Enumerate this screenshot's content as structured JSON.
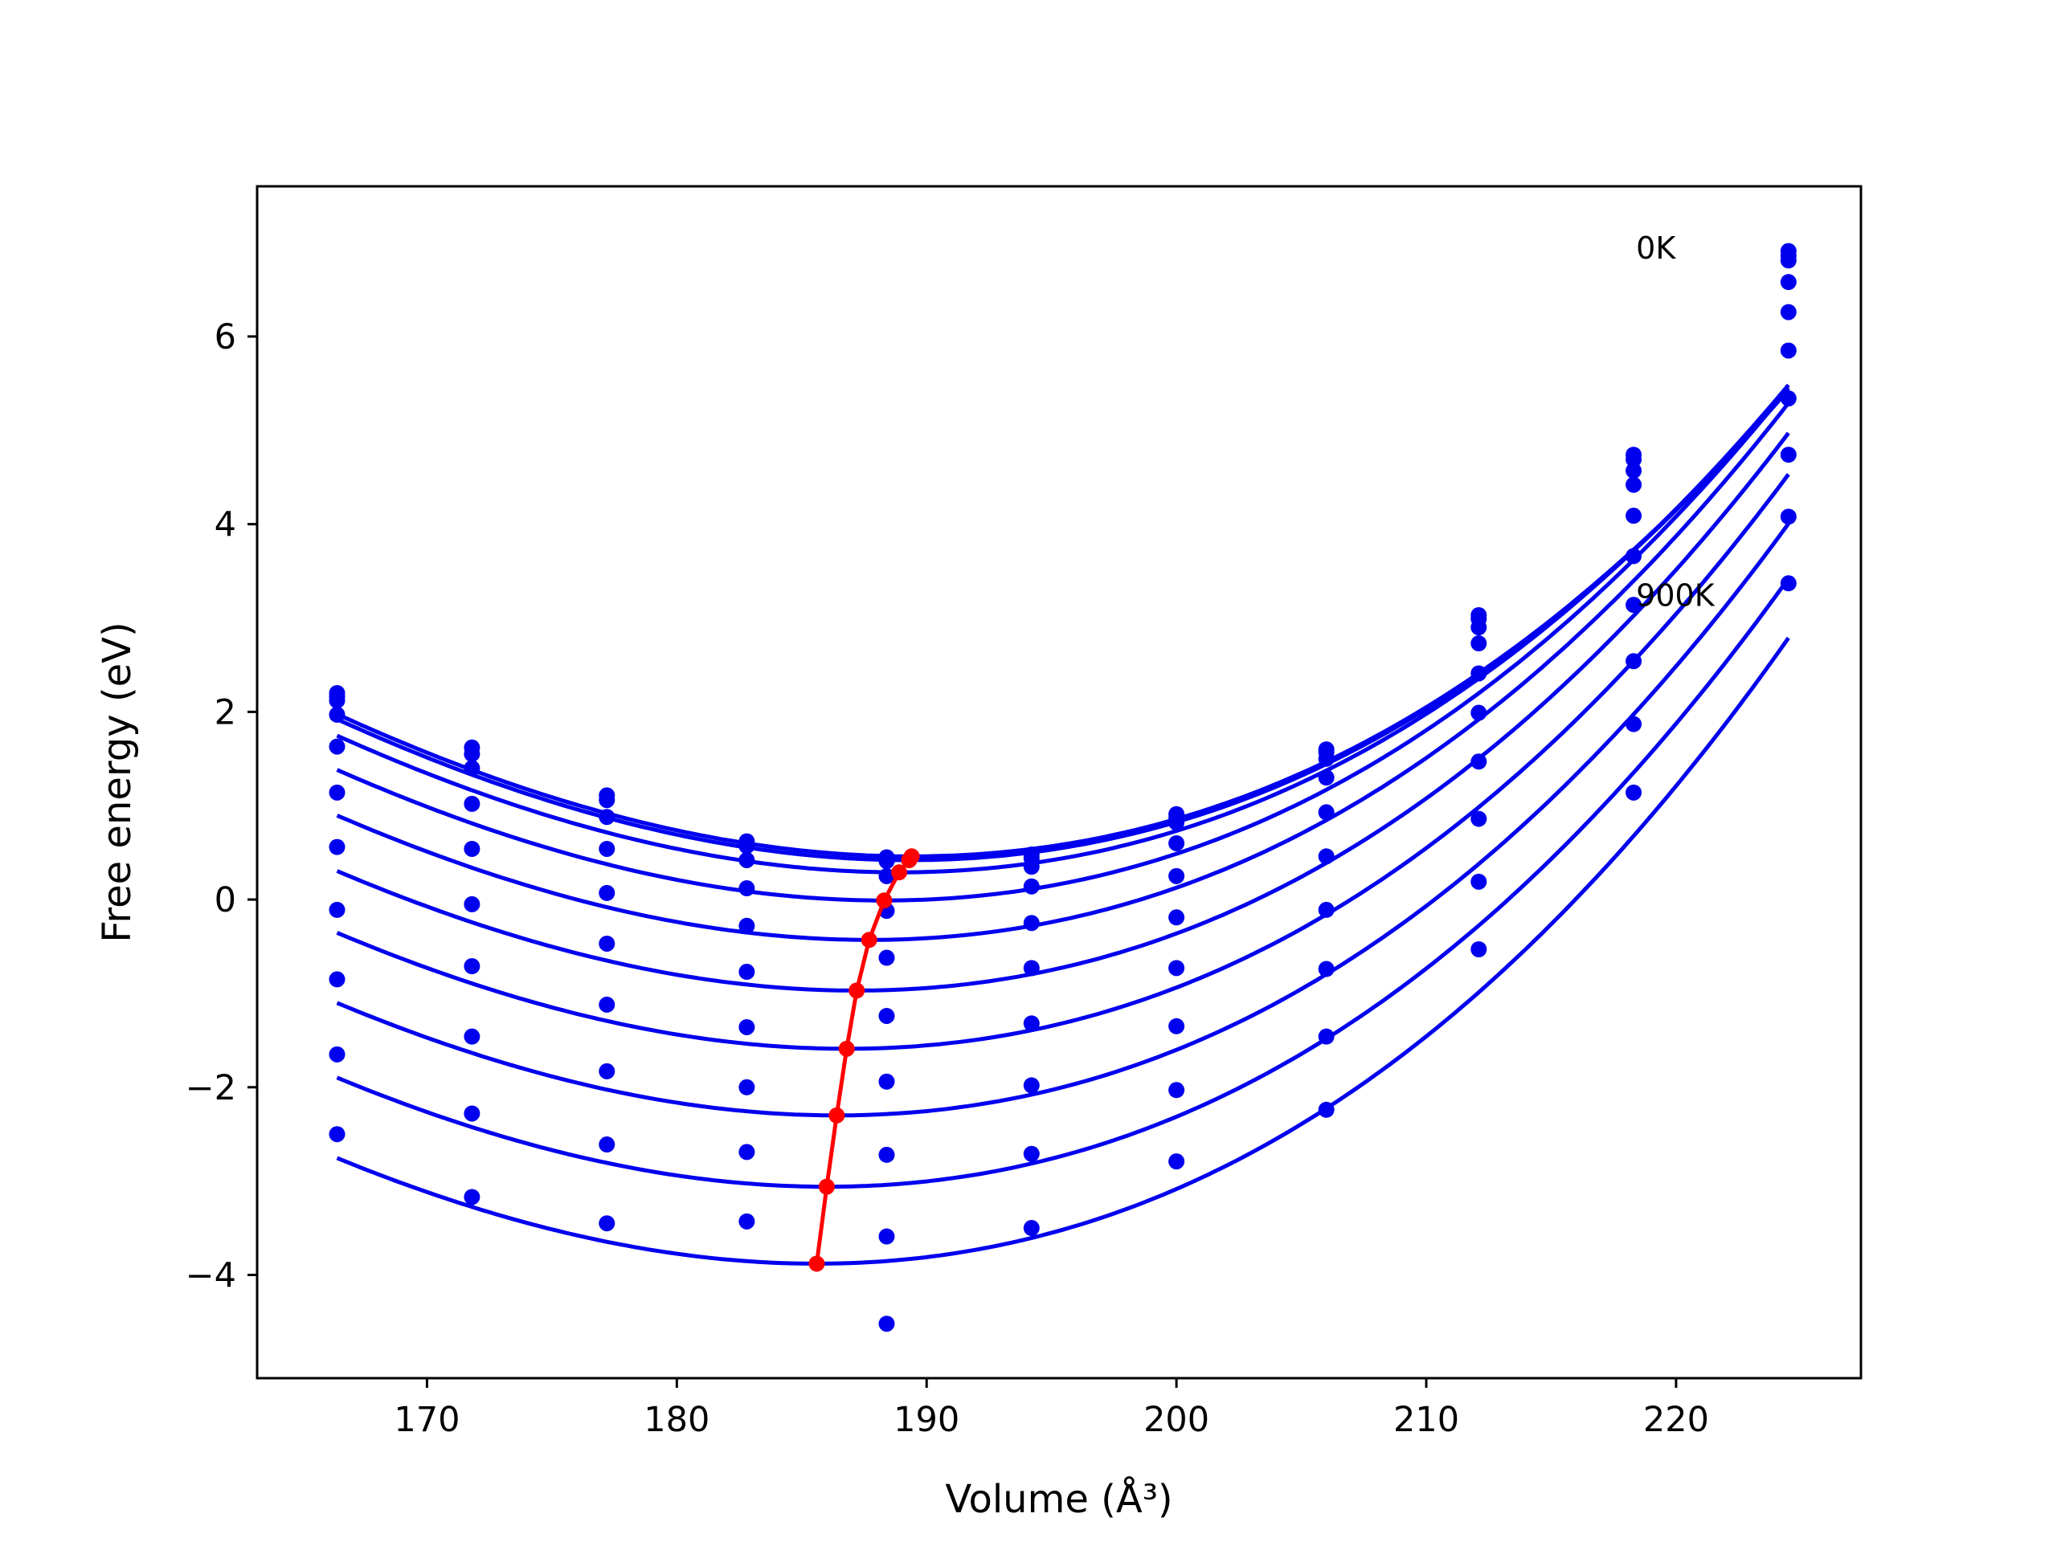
{
  "chart_data": {
    "type": "line",
    "xlabel": "Volume (Å³)",
    "ylabel": "Free energy (eV)",
    "xlim": [
      163.2,
      227.4
    ],
    "ylim": [
      -5.1,
      7.6
    ],
    "xticks": [
      170,
      180,
      190,
      200,
      210,
      220
    ],
    "yticks": [
      -4,
      -2,
      0,
      2,
      4,
      6
    ],
    "grid": false,
    "annotations": [
      {
        "text": "0K",
        "x": 218.4,
        "y": 6.95
      },
      {
        "text": "900K",
        "x": 218.4,
        "y": 3.25
      }
    ],
    "colors": {
      "curves": "#0000ee",
      "minimum": "#ff0000"
    },
    "volumes": [
      166.4,
      171.8,
      177.2,
      182.8,
      188.4,
      194.2,
      200.0,
      206.0,
      212.1,
      218.3,
      224.5
    ],
    "series": [
      {
        "points": [
          2.2,
          1.62,
          1.11,
          0.62,
          0.45,
          0.48,
          0.91,
          1.6,
          3.03,
          4.74,
          6.91
        ],
        "fit": {
          "vmin": 189.4,
          "fmin": 0.46,
          "a": 0.00333,
          "b": 2.02e-05
        }
      },
      {
        "points": [
          2.16,
          1.55,
          1.06,
          0.57,
          0.41,
          0.44,
          0.87,
          1.57,
          2.99,
          4.69,
          6.86
        ],
        "fit": {
          "vmin": 189.3,
          "fmin": 0.42,
          "a": 0.00333,
          "b": 2.04e-05
        }
      },
      {
        "points": [
          2.12,
          1.4,
          0.88,
          0.42,
          0.25,
          0.35,
          0.82,
          1.5,
          2.9,
          4.57,
          6.81
        ],
        "fit": {
          "vmin": 188.9,
          "fmin": 0.29,
          "a": 0.00335,
          "b": 2.1e-05
        }
      },
      {
        "points": [
          1.97,
          1.02,
          0.54,
          0.12,
          -0.12,
          0.14,
          0.6,
          1.3,
          2.73,
          4.42,
          6.58
        ],
        "fit": {
          "vmin": 188.3,
          "fmin": -0.01,
          "a": 0.00338,
          "b": 2.18e-05
        }
      },
      {
        "points": [
          1.63,
          0.54,
          0.07,
          -0.28,
          -0.62,
          -0.25,
          0.25,
          0.93,
          2.41,
          4.09,
          6.26
        ],
        "fit": {
          "vmin": 187.7,
          "fmin": -0.43,
          "a": 0.0034,
          "b": 2.24e-05
        }
      },
      {
        "points": [
          1.14,
          -0.05,
          -0.47,
          -0.77,
          -1.24,
          -0.73,
          -0.19,
          0.46,
          1.99,
          3.66,
          5.85
        ],
        "fit": {
          "vmin": 187.2,
          "fmin": -0.97,
          "a": 0.00342,
          "b": 2.28e-05
        }
      },
      {
        "points": [
          0.56,
          -0.71,
          -1.12,
          -1.36,
          -1.94,
          -1.32,
          -0.73,
          -0.11,
          1.47,
          3.14,
          5.34
        ],
        "fit": {
          "vmin": 186.8,
          "fmin": -1.59,
          "a": 0.00344,
          "b": 2.3e-05
        }
      },
      {
        "points": [
          -0.11,
          -1.46,
          -1.83,
          -2.0,
          -2.72,
          -1.98,
          -1.35,
          -0.74,
          0.86,
          2.54,
          4.74
        ],
        "fit": {
          "vmin": 186.4,
          "fmin": -2.3,
          "a": 0.00346,
          "b": 2.32e-05
        }
      },
      {
        "points": [
          -0.85,
          -2.28,
          -2.61,
          -2.69,
          -3.59,
          -2.71,
          -2.03,
          -1.46,
          0.19,
          1.87,
          4.08
        ],
        "fit": {
          "vmin": 186.0,
          "fmin": -3.06,
          "a": 0.00348,
          "b": 2.32e-05
        }
      },
      {
        "points": [
          -1.65,
          -3.17,
          -3.45,
          -3.43,
          -4.52,
          -3.5,
          -2.79,
          -2.24,
          -0.53,
          1.14,
          3.37
        ],
        "fit": {
          "vmin": 185.6,
          "fmin": -3.88,
          "a": 0.0035,
          "b": 2.33e-05
        }
      },
      {
        "points": [
          -2.5,
          null,
          null,
          null,
          null,
          null,
          null,
          null,
          null,
          null,
          null
        ],
        "fit": null
      }
    ],
    "minimum_line": {
      "x": [
        189.4,
        189.3,
        188.9,
        188.3,
        187.7,
        187.2,
        186.8,
        186.4,
        186.0,
        185.6
      ],
      "y": [
        0.46,
        0.42,
        0.29,
        -0.01,
        -0.43,
        -0.97,
        -1.59,
        -2.3,
        -3.06,
        -3.88
      ]
    }
  }
}
